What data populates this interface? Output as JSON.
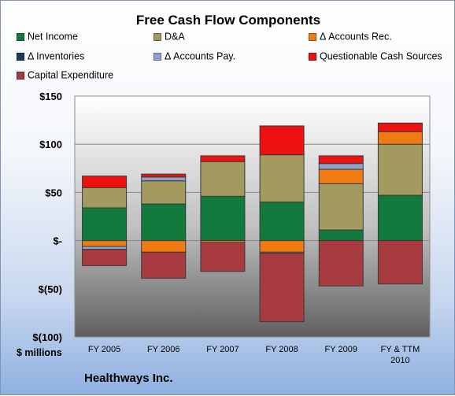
{
  "chart_data": {
    "type": "bar",
    "stacked": true,
    "title": "Free Cash Flow Components",
    "unit_label": "$ millions",
    "company": "Healthways Inc.",
    "categories": [
      "FY 2005",
      "FY 2006",
      "FY 2007",
      "FY 2008",
      "FY 2009",
      "FY & TTM 2010"
    ],
    "ylim": [
      -100,
      150
    ],
    "yticks": [
      {
        "value": 150,
        "label": "$150"
      },
      {
        "value": 100,
        "label": "$100"
      },
      {
        "value": 50,
        "label": "$50"
      },
      {
        "value": 0,
        "label": "$-"
      },
      {
        "value": -50,
        "label": "$(50)"
      },
      {
        "value": -100,
        "label": "$(100)"
      }
    ],
    "grid": true,
    "legend_position": "top",
    "series": [
      {
        "name": "Net Income",
        "color": "#127a3c",
        "values": [
          34,
          38,
          46,
          40,
          11,
          47
        ]
      },
      {
        "name": "D&A",
        "color": "#a39a5f",
        "values": [
          21,
          24,
          36,
          49,
          48,
          53
        ]
      },
      {
        "name": "Δ Accounts Rec.",
        "color": "#f07b12",
        "values": [
          -6,
          -12,
          -2,
          -12,
          15,
          13
        ]
      },
      {
        "name": "Δ Inventories",
        "color": "#1e3c5e",
        "values": [
          0,
          0,
          0,
          0,
          0,
          0
        ]
      },
      {
        "name": "Δ Accounts Pay.",
        "color": "#8ca4cc",
        "values": [
          -3,
          4,
          0,
          -1,
          6,
          0
        ]
      },
      {
        "name": "Questionable Cash Sources",
        "color": "#ee1111",
        "values": [
          12,
          3,
          6,
          30,
          8,
          9
        ]
      },
      {
        "name": "Capital Expenditure",
        "color": "#a83b3f",
        "values": [
          -17,
          -27,
          -30,
          -71,
          -47,
          -45
        ]
      }
    ]
  }
}
